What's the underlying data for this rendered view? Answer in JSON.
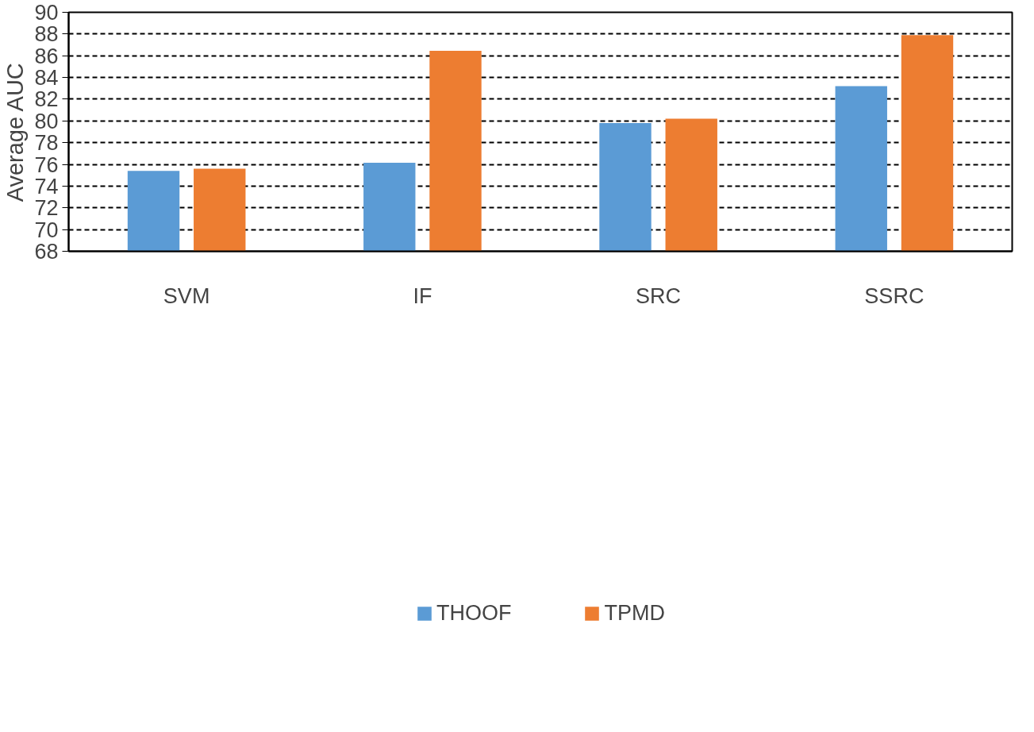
{
  "chart_data": {
    "type": "bar",
    "ylabel": "Average AUC",
    "categories": [
      "SVM",
      "IF",
      "SRC",
      "SSRC"
    ],
    "series": [
      {
        "name": "THOOF",
        "color": "#5b9bd5",
        "values": [
          75.4,
          76.15,
          79.8,
          83.2
        ]
      },
      {
        "name": "TPMD",
        "color": "#ed7d31",
        "values": [
          75.6,
          86.45,
          80.2,
          87.9
        ]
      }
    ],
    "ylim": [
      68,
      90
    ],
    "yticks": [
      68,
      70,
      72,
      74,
      76,
      78,
      80,
      82,
      84,
      86,
      88,
      90
    ],
    "grid": "y",
    "legend": "bottom"
  }
}
